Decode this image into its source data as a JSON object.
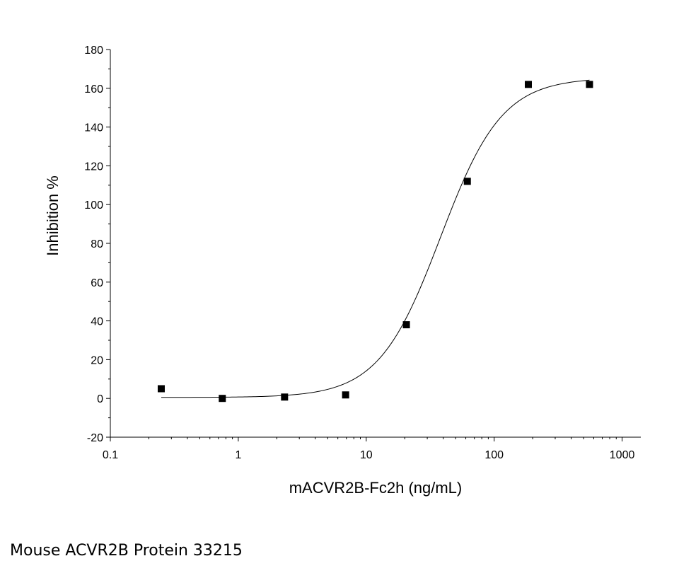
{
  "chart_data": {
    "type": "scatter",
    "xlabel": "mACVR2B-Fc2h (ng/mL)",
    "ylabel": "Inhibition %",
    "x_scale": "log",
    "xlim": [
      0.1,
      1400
    ],
    "ylim": [
      -20,
      180
    ],
    "x_ticks": [
      0.1,
      1,
      10,
      100,
      1000
    ],
    "x_tick_labels": [
      "0.1",
      "1",
      "10",
      "100",
      "1000"
    ],
    "y_ticks": [
      -20,
      0,
      20,
      40,
      60,
      80,
      100,
      120,
      140,
      160,
      180
    ],
    "y_tick_labels": [
      "-20",
      "0",
      "20",
      "40",
      "60",
      "80",
      "100",
      "120",
      "140",
      "160",
      "180"
    ],
    "grid": false,
    "series": [
      {
        "marker": "square",
        "color": "#000000",
        "x": [
          0.25,
          0.75,
          2.3,
          6.9,
          20.6,
          61.7,
          185,
          556
        ],
        "y": [
          5,
          0,
          0.7,
          1.8,
          38,
          112,
          162,
          162
        ]
      }
    ],
    "fit_curve": {
      "model": "4PL",
      "bottom": 0.5,
      "top": 165.5,
      "ec50": 38,
      "hill": 1.8,
      "x_range": [
        0.25,
        556
      ],
      "color": "#000000"
    }
  },
  "caption": "Mouse ACVR2B Protein 33215"
}
